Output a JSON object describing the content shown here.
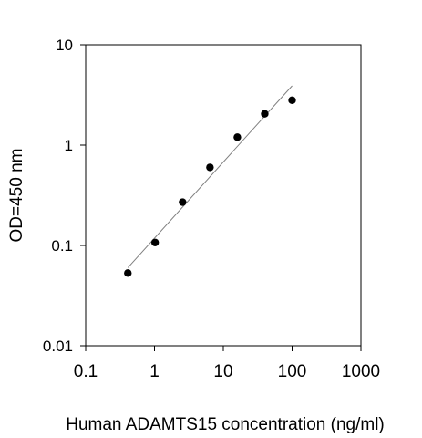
{
  "chart_data": {
    "type": "scatter",
    "title": "",
    "xlabel": "Human ADAMTS15 concentration (ng/ml)",
    "ylabel": "OD=450 nm",
    "xscale": "log",
    "yscale": "log",
    "xlim": [
      0.1,
      1000
    ],
    "ylim": [
      0.01,
      10
    ],
    "x_ticks": [
      0.1,
      1,
      10,
      100,
      1000
    ],
    "x_tick_labels": [
      "0.1",
      "1",
      "10",
      "100",
      "1000"
    ],
    "y_ticks": [
      0.01,
      0.1,
      1,
      10
    ],
    "y_tick_labels": [
      "0.01",
      "0.1",
      "1",
      "10"
    ],
    "grid": false,
    "legend": "none",
    "series": [
      {
        "x": [
          0.41,
          1.02,
          2.56,
          6.4,
          16,
          40,
          100
        ],
        "y": [
          0.053,
          0.107,
          0.27,
          0.6,
          1.2,
          2.05,
          2.8
        ],
        "color": "#000000",
        "marker": "filled-circle"
      }
    ],
    "fit_line": {
      "type": "power-regression",
      "x": [
        0.41,
        100
      ],
      "y": [
        0.06,
        3.9
      ],
      "color": "#7f7f7f"
    }
  }
}
